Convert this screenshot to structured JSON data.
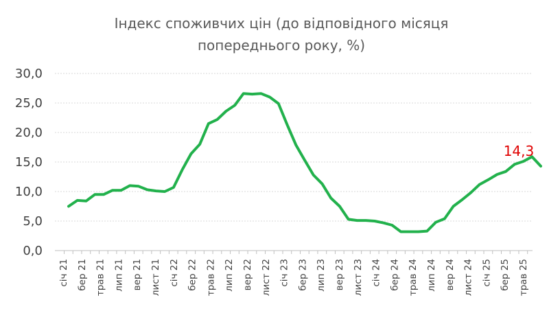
{
  "chart_data": {
    "type": "line",
    "title_lines": [
      "Індекс споживчих цін (до відповідного місяця",
      "попереднього року, %)"
    ],
    "xlabel": "",
    "ylabel": "",
    "ylim": [
      0,
      30
    ],
    "y_ticks": [
      "0,0",
      "5,0",
      "10,0",
      "15,0",
      "20,0",
      "25,0",
      "30,0"
    ],
    "grid": true,
    "legend": "none",
    "x_tick_labels": [
      "січ 21",
      "бер 21",
      "трав 21",
      "лип 21",
      "вер 21",
      "лист 21",
      "січ 22",
      "бер 22",
      "трав 22",
      "лип 22",
      "вер 22",
      "лист 22",
      "січ 23",
      "бер 23",
      "лип 23",
      "вер 23",
      "лист 23",
      "січ 24",
      "бер 24",
      "трав 24",
      "лип 24",
      "вер 24",
      "лист 24",
      "січ 25",
      "бер 25",
      "трав 25"
    ],
    "series": [
      {
        "color": "#22b14c",
        "values": [
          7.5,
          8.5,
          8.4,
          9.5,
          9.5,
          10.2,
          10.2,
          11.0,
          10.9,
          10.3,
          10.1,
          10.0,
          10.7,
          13.7,
          16.4,
          18.0,
          21.5,
          22.2,
          23.6,
          24.6,
          26.6,
          26.5,
          26.6,
          26.0,
          24.9,
          21.3,
          17.9,
          15.3,
          12.8,
          11.3,
          8.9,
          7.5,
          5.3,
          5.1,
          5.1,
          5.0,
          4.7,
          4.3,
          3.2,
          3.2,
          3.2,
          3.3,
          4.8,
          5.4,
          7.5,
          8.6,
          9.8,
          11.2,
          12.0,
          12.9,
          13.4,
          14.6,
          15.1,
          15.9,
          14.3
        ],
        "last_label": "14,3"
      }
    ]
  }
}
